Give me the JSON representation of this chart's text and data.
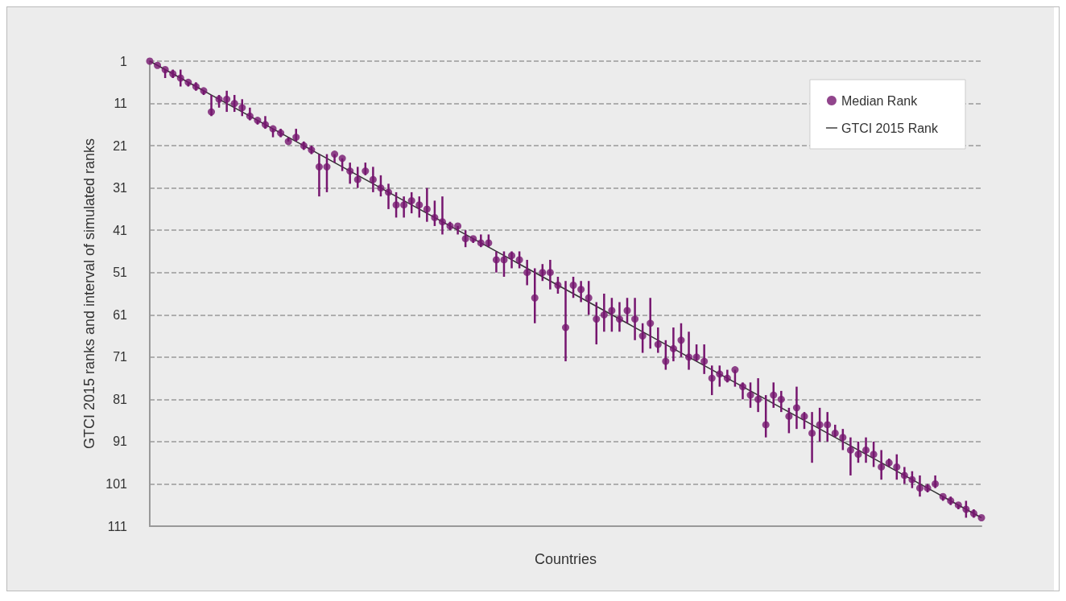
{
  "chart_data": {
    "type": "scatter",
    "xlabel": "Countries",
    "ylabel": "GTCI 2015 ranks and interval of simulated ranks",
    "categories": [
      null,
      null,
      null,
      null,
      null,
      null,
      null,
      null,
      null,
      null,
      null,
      null,
      null,
      null,
      null,
      null,
      null,
      null,
      null,
      null,
      null,
      null,
      null,
      null,
      null,
      null,
      null,
      null,
      null,
      null,
      null,
      null,
      null,
      null,
      null,
      null,
      null,
      null,
      null,
      null,
      null,
      null,
      null,
      null,
      null,
      null,
      null,
      null,
      null,
      null,
      null,
      null,
      null,
      null,
      null,
      null,
      null,
      null,
      null,
      null,
      null,
      null,
      null,
      null,
      null,
      null,
      null,
      null,
      null,
      null,
      null,
      null,
      null,
      null,
      null,
      null,
      null,
      null,
      null,
      null,
      null,
      null,
      null,
      null,
      null,
      null,
      null,
      null,
      null,
      null,
      null,
      null,
      null,
      null,
      null,
      null,
      null,
      null,
      null,
      null,
      null,
      null,
      null,
      null,
      null,
      null,
      null,
      null,
      null
    ],
    "series": [
      {
        "name": "Median Rank",
        "color": "#76166f",
        "values": [
          1,
          2,
          3,
          4,
          5,
          6,
          7,
          8,
          13,
          10,
          10,
          11,
          12,
          14,
          15,
          16,
          17,
          18,
          20,
          19,
          21,
          22,
          26,
          26,
          23,
          24,
          27,
          29,
          27,
          29,
          31,
          32,
          35,
          35,
          34,
          35,
          36,
          38,
          39,
          40,
          40,
          43,
          43,
          44,
          44,
          48,
          48,
          47,
          48,
          51,
          57,
          51,
          51,
          54,
          64,
          54,
          55,
          57,
          62,
          61,
          60,
          62,
          60,
          62,
          66,
          63,
          68,
          72,
          69,
          67,
          71,
          71,
          72,
          76,
          75,
          76,
          74,
          78,
          80,
          81,
          87,
          80,
          81,
          85,
          83,
          85,
          89,
          87,
          87,
          89,
          90,
          93,
          94,
          93,
          94,
          97,
          96,
          97,
          99,
          100,
          102,
          102,
          101,
          104,
          105,
          106,
          107,
          108,
          109
        ],
        "errors": [
          null,
          null,
          [
            3,
            5
          ],
          [
            3,
            5
          ],
          [
            3,
            7
          ],
          [
            6,
            7
          ],
          [
            6,
            8
          ],
          [
            8,
            9
          ],
          [
            9,
            14
          ],
          [
            9,
            12
          ],
          [
            8,
            13
          ],
          [
            9,
            13
          ],
          [
            10,
            14
          ],
          [
            12,
            15
          ],
          [
            15,
            16
          ],
          [
            14,
            17
          ],
          [
            17,
            19
          ],
          [
            17,
            19
          ],
          [
            19,
            20
          ],
          [
            17,
            20
          ],
          [
            20,
            22
          ],
          [
            21,
            23
          ],
          [
            23,
            33
          ],
          [
            23,
            32
          ],
          [
            23,
            25
          ],
          [
            24,
            27
          ],
          [
            25,
            30
          ],
          [
            26,
            31
          ],
          [
            25,
            28
          ],
          [
            26,
            32
          ],
          [
            28,
            33
          ],
          [
            30,
            36
          ],
          [
            32,
            38
          ],
          [
            33,
            38
          ],
          [
            32,
            37
          ],
          [
            33,
            38
          ],
          [
            31,
            39
          ],
          [
            34,
            40
          ],
          [
            33,
            42
          ],
          [
            39,
            41
          ],
          [
            40,
            42
          ],
          [
            41,
            45
          ],
          [
            43,
            44
          ],
          [
            42,
            45
          ],
          [
            42,
            45
          ],
          [
            46,
            51
          ],
          [
            46,
            52
          ],
          [
            46,
            50
          ],
          [
            46,
            50
          ],
          [
            48,
            54
          ],
          [
            50,
            63
          ],
          [
            49,
            53
          ],
          [
            48,
            55
          ],
          [
            52,
            56
          ],
          [
            53,
            72
          ],
          [
            52,
            57
          ],
          [
            53,
            58
          ],
          [
            53,
            61
          ],
          [
            58,
            68
          ],
          [
            56,
            65
          ],
          [
            57,
            65
          ],
          [
            58,
            65
          ],
          [
            57,
            63
          ],
          [
            57,
            67
          ],
          [
            63,
            70
          ],
          [
            57,
            69
          ],
          [
            64,
            70
          ],
          [
            67,
            74
          ],
          [
            64,
            72
          ],
          [
            63,
            71
          ],
          [
            65,
            74
          ],
          [
            68,
            72
          ],
          [
            68,
            75
          ],
          [
            73,
            80
          ],
          [
            73,
            78
          ],
          [
            74,
            77
          ],
          [
            74,
            78
          ],
          [
            77,
            81
          ],
          [
            77,
            83
          ],
          [
            76,
            84
          ],
          [
            80,
            90
          ],
          [
            77,
            83
          ],
          [
            79,
            84
          ],
          [
            83,
            89
          ],
          [
            78,
            88
          ],
          [
            84,
            88
          ],
          [
            84,
            96
          ],
          [
            83,
            91
          ],
          [
            84,
            91
          ],
          [
            87,
            90
          ],
          [
            88,
            93
          ],
          [
            90,
            99
          ],
          [
            91,
            96
          ],
          [
            90,
            96
          ],
          [
            91,
            97
          ],
          [
            93,
            100
          ],
          [
            95,
            97
          ],
          [
            94,
            100
          ],
          [
            97,
            101
          ],
          [
            98,
            102
          ],
          [
            99,
            104
          ],
          [
            101,
            103
          ],
          [
            99,
            102
          ],
          [
            104,
            105
          ],
          [
            104,
            106
          ],
          [
            106,
            107
          ],
          [
            105,
            109
          ],
          [
            107,
            109
          ],
          null
        ]
      },
      {
        "name": "GTCI 2015 Rank",
        "type": "line",
        "color": "#333333",
        "marker": "none",
        "values": [
          1,
          2,
          3,
          4,
          5,
          6,
          7,
          8,
          9,
          10,
          11,
          12,
          13,
          14,
          15,
          16,
          17,
          18,
          19,
          20,
          21,
          22,
          23,
          24,
          25,
          26,
          27,
          28,
          29,
          30,
          31,
          32,
          33,
          34,
          35,
          36,
          37,
          38,
          39,
          40,
          41,
          42,
          43,
          44,
          45,
          46,
          47,
          48,
          49,
          50,
          51,
          52,
          53,
          54,
          55,
          56,
          57,
          58,
          59,
          60,
          61,
          62,
          63,
          64,
          65,
          66,
          67,
          68,
          69,
          70,
          71,
          72,
          73,
          74,
          75,
          76,
          77,
          78,
          79,
          80,
          81,
          82,
          83,
          84,
          85,
          86,
          87,
          88,
          89,
          90,
          91,
          92,
          93,
          94,
          95,
          96,
          97,
          98,
          99,
          100,
          101,
          102,
          103,
          104,
          105,
          106,
          107,
          108,
          109
        ]
      }
    ],
    "ylim": [
      111,
      1
    ],
    "yticks": [
      1,
      11,
      21,
      31,
      41,
      51,
      61,
      71,
      81,
      91,
      101,
      111
    ],
    "grid": "y",
    "legend": "top right",
    "marker": "circle",
    "tick_labels": "y"
  }
}
